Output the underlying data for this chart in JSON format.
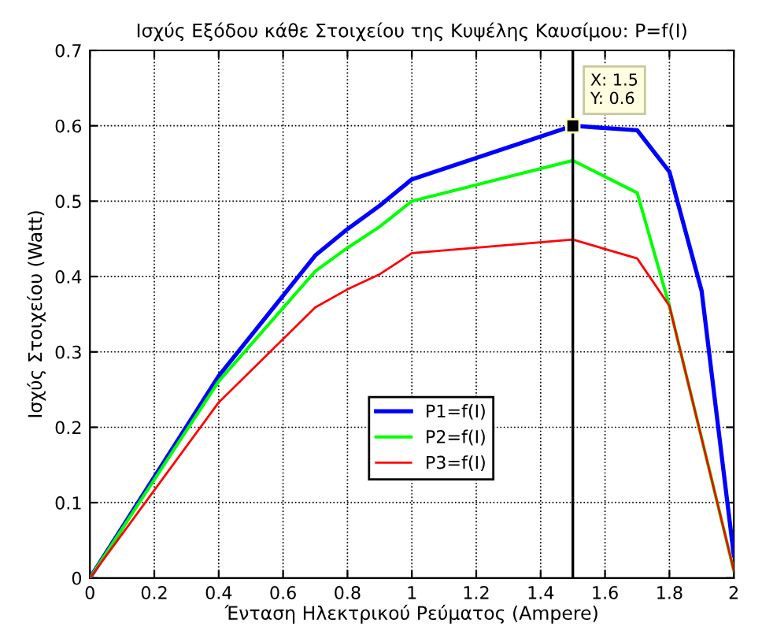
{
  "chart_data": {
    "type": "line",
    "title": "Ισχύς Εξόδου κάθε Στοιχείου της Κυψέλης Καυσίμου: P=f(I)",
    "xlabel": "Ένταση Ηλεκτρικού Ρεύματος (Ampere)",
    "ylabel": "Ισχύς Στοιχείου (Watt)",
    "series": [
      {
        "name": "P1=f(I)",
        "color": "#0000ff",
        "x": [
          0,
          0.4,
          0.7,
          0.8,
          0.9,
          1,
          1.5,
          1.7,
          1.8,
          1.9,
          2
        ],
        "values": [
          0,
          0.268,
          0.428,
          0.463,
          0.494,
          0.529,
          0.6,
          0.594,
          0.539,
          0.381,
          0.03
        ]
      },
      {
        "name": "P2=f(I)",
        "color": "#00ff00",
        "x": [
          0,
          0.4,
          0.7,
          0.8,
          0.9,
          1,
          1.5,
          1.7,
          1.8,
          2
        ],
        "values": [
          0,
          0.261,
          0.407,
          0.438,
          0.466,
          0.5,
          0.554,
          0.511,
          0.361,
          0.01
        ]
      },
      {
        "name": "P3=f(I)",
        "color": "#ff0000",
        "x": [
          0,
          0.4,
          0.7,
          0.8,
          0.9,
          1,
          1.5,
          1.7,
          1.8,
          2
        ],
        "values": [
          0,
          0.233,
          0.359,
          0.383,
          0.403,
          0.431,
          0.449,
          0.424,
          0.361,
          0.01
        ]
      }
    ],
    "xlim": [
      0,
      2
    ],
    "ylim": [
      0,
      0.7
    ],
    "xticks": [
      0,
      0.2,
      0.4,
      0.6,
      0.8,
      1,
      1.2,
      1.4,
      1.6,
      1.8,
      2
    ],
    "yticks": [
      0,
      0.1,
      0.2,
      0.3,
      0.4,
      0.5,
      0.6,
      0.7
    ],
    "ref_lines": [
      {
        "axis": "x",
        "value": 1.5,
        "color": "#000000"
      }
    ],
    "annotations": [
      {
        "text": "X: 1.5\nY: 0.6",
        "x": 1.5,
        "y": 0.6
      }
    ],
    "grid": true,
    "legend": "center",
    "marker": "none",
    "line_style": "solid"
  }
}
